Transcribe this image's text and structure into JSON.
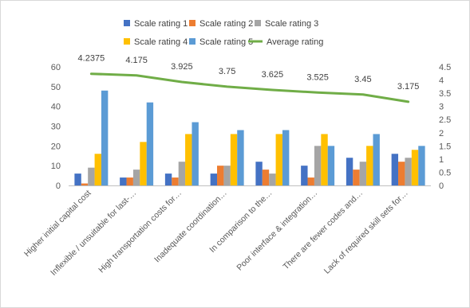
{
  "chart_data": {
    "type": "bar",
    "categories": [
      "Higher initial capital cost",
      "Inflexible / unsuitable for last-…",
      "High transportation costs for…",
      "Inadequate coordination…",
      "In comparison to the…",
      "Poor interface & integration…",
      "There are fewer codes and…",
      "Lack of required skill sets for…"
    ],
    "series": [
      {
        "name": "Scale rating 1",
        "color": "#4472C4",
        "values": [
          6,
          4,
          6,
          6,
          12,
          10,
          14,
          16
        ]
      },
      {
        "name": "Scale rating 2",
        "color": "#ED7D31",
        "values": [
          1,
          4,
          4,
          10,
          8,
          4,
          8,
          12
        ]
      },
      {
        "name": "Scale rating 3",
        "color": "#A5A5A5",
        "values": [
          9,
          8,
          12,
          10,
          6,
          20,
          12,
          14
        ]
      },
      {
        "name": "Scale rating 4",
        "color": "#FFC000",
        "values": [
          16,
          22,
          26,
          26,
          26,
          26,
          20,
          18
        ]
      },
      {
        "name": "Scale rating 5",
        "color": "#5B9BD5",
        "values": [
          48,
          42,
          32,
          28,
          28,
          20,
          26,
          20
        ]
      }
    ],
    "line_series": {
      "name": "Average rating",
      "color": "#70AD47",
      "values": [
        4.2375,
        4.175,
        3.925,
        3.75,
        3.625,
        3.525,
        3.45,
        3.175
      ],
      "labels": [
        "4.2375",
        "4.175",
        "3.925",
        "3.75",
        "3.625",
        "3.525",
        "3.45",
        "3.175"
      ]
    },
    "y_left": {
      "min": 0,
      "max": 60,
      "step": 10,
      "ticks": [
        "0",
        "10",
        "20",
        "30",
        "40",
        "50",
        "60"
      ]
    },
    "y_right": {
      "min": 0,
      "max": 4.5,
      "step": 0.5,
      "ticks": [
        "0",
        "0.5",
        "1",
        "1.5",
        "2",
        "2.5",
        "3",
        "3.5",
        "4",
        "4.5"
      ]
    },
    "grid": false,
    "legend_position": "top"
  }
}
